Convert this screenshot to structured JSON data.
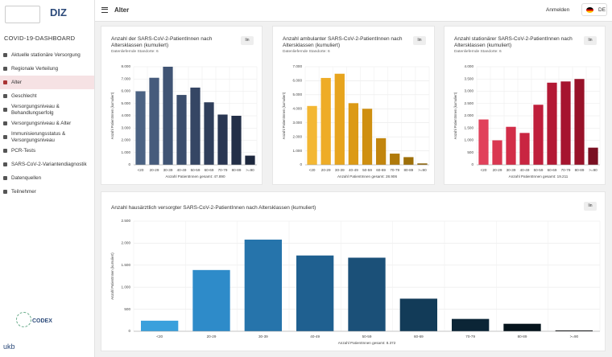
{
  "header": {
    "title": "Alter",
    "login": "Anmelden",
    "language": "DE"
  },
  "sidebar": {
    "logo": "DIZ",
    "dashboard_title": "COVID-19-DASHBOARD",
    "items": [
      {
        "label": "Aktuelle stationäre Versorgung"
      },
      {
        "label": "Regionale Verteilung"
      },
      {
        "label": "Alter",
        "active": true
      },
      {
        "label": "Geschlecht"
      },
      {
        "label": "Versorgungsniveau & Behandlungserfolg"
      },
      {
        "label": "Versorgungsniveau & Alter"
      },
      {
        "label": "Immunisierungsstatus & Versorgungsniveau"
      },
      {
        "label": "PCR-Tests"
      },
      {
        "label": "SARS-CoV-2-Variantendiagnostik"
      },
      {
        "label": "Datenquellen"
      },
      {
        "label": "Teilnehmer"
      }
    ],
    "footer_logo": "CODEX",
    "footer_logo2": "ukb"
  },
  "chart_data": [
    {
      "type": "bar",
      "title": "Anzahl der SARS-CoV-2-PatientInnen nach Altersklassen (kumuliert)",
      "subtitle": "Datenliefernde Standorte: 6",
      "button": "lin",
      "ylabel": "Anzahl PatientInnen (kumuliert)",
      "xlabel": "Anzahl PatientInnen gesamt: 47.890",
      "categories": [
        "<20",
        "20-29",
        "30-39",
        "40-49",
        "50-59",
        "60-69",
        "70-79",
        "80-89",
        ">=90"
      ],
      "values": [
        6000,
        7100,
        8000,
        5700,
        6300,
        5100,
        4100,
        4000,
        750
      ],
      "colors": [
        "#4b6283",
        "#465b7c",
        "#405474",
        "#3b4d6c",
        "#354664",
        "#2f3e5b",
        "#293652",
        "#232f48",
        "#1d283e"
      ],
      "ylim": [
        0,
        8000
      ],
      "yticks": [
        0,
        {
          "value": 1000,
          "label": "1.000"
        },
        {
          "value": 2000,
          "label": "2.000"
        },
        {
          "value": 3000,
          "label": "3.000"
        },
        {
          "value": 4000,
          "label": "4.000"
        },
        {
          "value": 5000,
          "label": "5.000"
        },
        {
          "value": 6000,
          "label": "6.000"
        },
        {
          "value": 7000,
          "label": "7.000"
        },
        {
          "value": 8000,
          "label": "8.000"
        }
      ],
      "grid": true
    },
    {
      "type": "bar",
      "title": "Anzahl ambulanter SARS-CoV-2-PatientInnen nach Altersklassen (kumuliert)",
      "subtitle": "Datenliefernde Standorte: 6",
      "button": "lin",
      "ylabel": "Anzahl PatientInnen (kumuliert)",
      "xlabel": "Anzahl PatientInnen gesamt: 28.906",
      "categories": [
        "<20",
        "20-29",
        "30-39",
        "40-49",
        "50-59",
        "60-69",
        "70-79",
        "80-89",
        ">=90"
      ],
      "values": [
        4200,
        6200,
        6500,
        4400,
        4000,
        1900,
        800,
        550,
        100
      ],
      "colors": [
        "#f3b733",
        "#eeac27",
        "#e7a41d",
        "#dc9a15",
        "#cf8f10",
        "#c2850d",
        "#b07a0b",
        "#9e6f09",
        "#8c6307"
      ],
      "ylim": [
        0,
        7000
      ],
      "yticks": [
        0,
        {
          "value": 1000,
          "label": "1.000"
        },
        {
          "value": 2000,
          "label": "2.000"
        },
        {
          "value": 3000,
          "label": "3.000"
        },
        {
          "value": 4000,
          "label": "4.000"
        },
        {
          "value": 5000,
          "label": "5.000"
        },
        {
          "value": 6000,
          "label": "6.000"
        },
        {
          "value": 7000,
          "label": "7.000"
        }
      ],
      "grid": true
    },
    {
      "type": "bar",
      "title": "Anzahl stationärer SARS-CoV-2-PatientInnen nach Altersklassen (kumuliert)",
      "subtitle": "Datenliefernde Standorte: 6",
      "button": "lin",
      "ylabel": "Anzahl PatientInnen (kumuliert)",
      "xlabel": "Anzahl PatientInnen gesamt: 19.211",
      "categories": [
        "<20",
        "20-29",
        "30-39",
        "40-49",
        "50-59",
        "60-69",
        "70-79",
        "80-89",
        ">=90"
      ],
      "values": [
        1850,
        1000,
        1550,
        1300,
        2450,
        3350,
        3400,
        3500,
        700
      ],
      "colors": [
        "#e1415b",
        "#da3751",
        "#d22d48",
        "#c92541",
        "#bf1e3b",
        "#b31935",
        "#a6142f",
        "#981229",
        "#7a0f22"
      ],
      "ylim": [
        0,
        4000
      ],
      "yticks": [
        0,
        500,
        {
          "value": 1000,
          "label": "1.000"
        },
        {
          "value": 1500,
          "label": "1.500"
        },
        {
          "value": 2000,
          "label": "2.000"
        },
        {
          "value": 2500,
          "label": "2.500"
        },
        {
          "value": 3000,
          "label": "3.000"
        },
        {
          "value": 3500,
          "label": "3.500"
        },
        {
          "value": 4000,
          "label": "4.000"
        }
      ],
      "grid": true
    },
    {
      "type": "bar",
      "title": "Anzahl hausärztlich versorgter SARS-CoV-2-PatientInnen nach Altersklassen (kumuliert)",
      "button": "lin",
      "ylabel": "Anzahl PatientInnen (kumuliert)",
      "xlabel": "Anzahl PatientInnen gesamt: 8.372",
      "categories": [
        "<20",
        "20-29",
        "30-39",
        "40-49",
        "50-59",
        "60-69",
        "70-79",
        "80-89",
        ">=90"
      ],
      "values": [
        240,
        1390,
        2080,
        1720,
        1670,
        740,
        280,
        170,
        20
      ],
      "colors": [
        "#3aa0dc",
        "#2e8bc9",
        "#2674ab",
        "#1f6090",
        "#1b5078",
        "#123b58",
        "#0b2536",
        "#06141d",
        "#020508"
      ],
      "ylim": [
        0,
        2500
      ],
      "yticks": [
        0,
        500,
        {
          "value": 1000,
          "label": "1.000"
        },
        {
          "value": 1500,
          "label": "1.500"
        },
        {
          "value": 2000,
          "label": "2.000"
        },
        {
          "value": 2500,
          "label": "2.500"
        }
      ],
      "grid": true
    }
  ]
}
